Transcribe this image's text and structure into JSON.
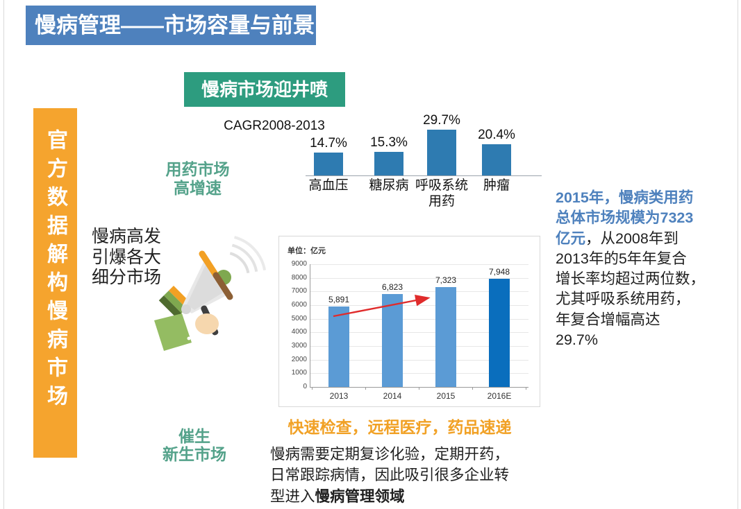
{
  "title": "慢病管理——市场容量与前景",
  "sidebar": {
    "text": "官方数据解构慢病市场"
  },
  "badge": {
    "text": "慢病市场迎井喷"
  },
  "labels": {
    "drug_market_line1": "用药市场",
    "drug_market_line2": "高增速",
    "left_note_line1": "慢病高发",
    "left_note_line2": "引爆各大",
    "left_note_line3": "细分市场",
    "catalyst_line1": "催生",
    "catalyst_line2": "新生市场",
    "orange_headline": "快速检查，远程医疗，药品速递"
  },
  "right_note": {
    "line1": "2015年，慢病类用药",
    "line2": "总体市场规模为7323",
    "line3_highlight": "亿元",
    "line3_rest": "，从2008年到",
    "line4": "2013年的5年年复合",
    "line5": "增长率均超过两位数，",
    "line6": "尤其呼吸系统用药，",
    "line7": "年复合增幅高达",
    "line8": "29.7%"
  },
  "bottom_para": {
    "line1": "慢病需要定期复诊化验，定期开药，",
    "line2": "日常跟踪病情，因此吸引很多企业转",
    "line3_prefix": "型进入",
    "line3_bold": "慢病管理领域"
  },
  "chart_data": [
    {
      "type": "bar",
      "title": "CAGR2008-2013",
      "categories": [
        "高血压",
        "糖尿病",
        "呼吸系统\n用药",
        "肿瘤"
      ],
      "values": [
        14.7,
        15.3,
        29.7,
        20.4
      ],
      "labels": [
        "14.7%",
        "15.3%",
        "29.7%",
        "20.4%"
      ],
      "unit": "%",
      "bar_color": "#2E7BB1",
      "grid": false,
      "legend": "none"
    },
    {
      "type": "bar",
      "title": "单位：亿元",
      "categories": [
        "2013",
        "2014",
        "2015",
        "2016E"
      ],
      "values": [
        5891,
        6823,
        7323,
        7948
      ],
      "labels": [
        "5,891",
        "6,823",
        "7,323",
        "7,948"
      ],
      "ylim": [
        0,
        9000
      ],
      "yticks": [
        0,
        1000,
        2000,
        3000,
        4000,
        5000,
        6000,
        7000,
        8000,
        9000
      ],
      "bar_colors": [
        "#5B9BD5",
        "#5B9BD5",
        "#5B9BD5",
        "#0A6EBD"
      ],
      "grid": true,
      "legend": "none",
      "annotation": "red upward trend arrow from 2013 bar to 2015 bar"
    }
  ],
  "icons": {
    "megaphone": "megaphone-illustration",
    "sound_waves": "sound-waves",
    "trend_arrow": "red-trend-arrow"
  },
  "colors": {
    "title_bg": "#4E81BD",
    "sidebar_bg": "#F5A42E",
    "badge_bg": "#2D9C7F",
    "teal_text": "#54A28A",
    "orange_text": "#F1A125",
    "mini_bar": "#2E7BB1",
    "bar_light": "#5B9BD5",
    "bar_dark": "#0A6EBD",
    "arrow_red": "#E02B2B",
    "highlight_blue": "#4E81BD"
  }
}
